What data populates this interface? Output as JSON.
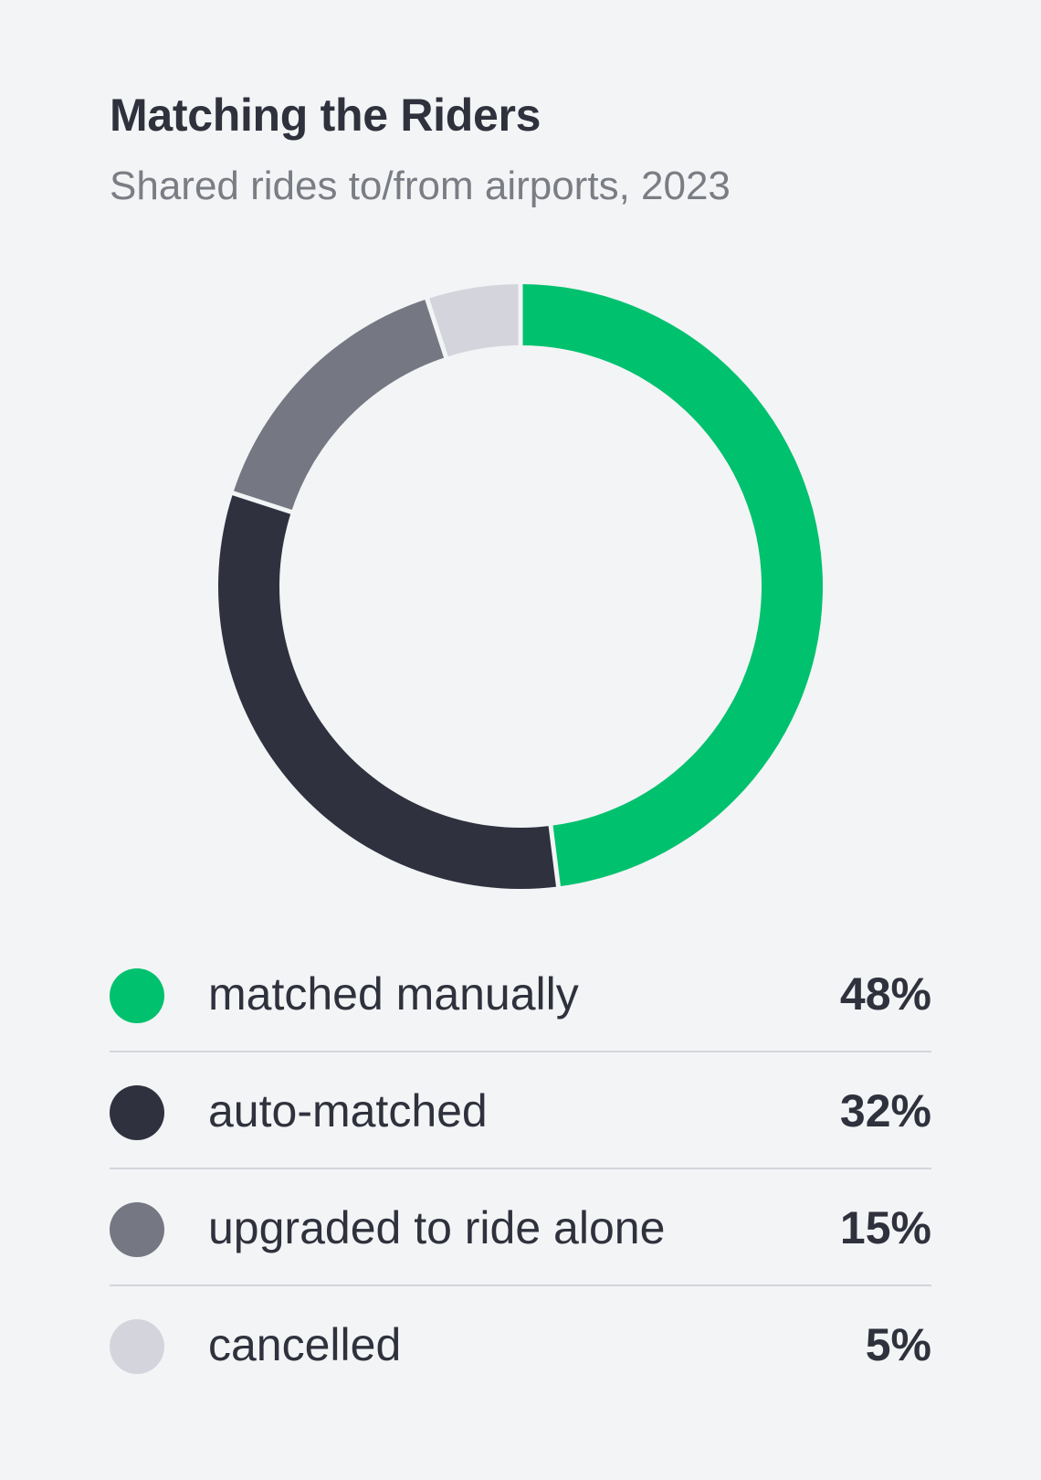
{
  "header": {
    "title": "Matching the Riders",
    "subtitle": "Shared rides to/from airports, 2023"
  },
  "colors": {
    "background": "#f3f4f6",
    "separator": "#f3f4f6"
  },
  "chart_data": {
    "type": "pie",
    "style": "donut",
    "title": "Matching the Riders",
    "subtitle": "Shared rides to/from airports, 2023",
    "categories": [
      "matched manually",
      "auto-matched",
      "upgraded to ride alone",
      "cancelled"
    ],
    "values": [
      48,
      32,
      15,
      5
    ],
    "value_labels": [
      "48%",
      "32%",
      "15%",
      "5%"
    ],
    "colors": [
      "#00c16e",
      "#2f313e",
      "#757782",
      "#d4d5dc"
    ],
    "start_angle": "12 o'clock",
    "direction": "clockwise",
    "legend": "bottom"
  }
}
